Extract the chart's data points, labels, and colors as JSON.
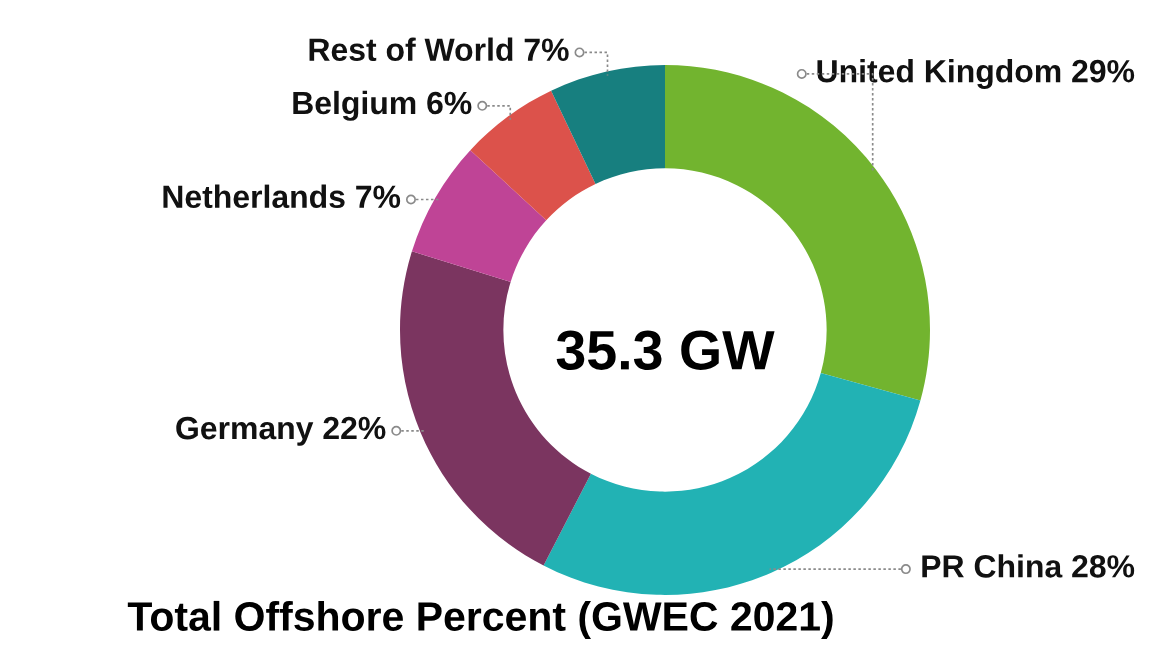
{
  "chart_data": {
    "type": "donut",
    "title": "Total Offshore Percent (GWEC 2021)",
    "categories": [
      "United Kingdom",
      "PR China",
      "Germany",
      "Netherlands",
      "Belgium",
      "Rest of World"
    ],
    "values": [
      29,
      28,
      22,
      7,
      6,
      7
    ],
    "value_labels": [
      "29%",
      "28%",
      "22%",
      "7%",
      "6%",
      "7%"
    ],
    "colors": [
      "#72b42f",
      "#22b2b4",
      "#7b3560",
      "#bf4496",
      "#dc524b",
      "#177f7f"
    ],
    "annotations": [
      "35.3 GW"
    ]
  }
}
